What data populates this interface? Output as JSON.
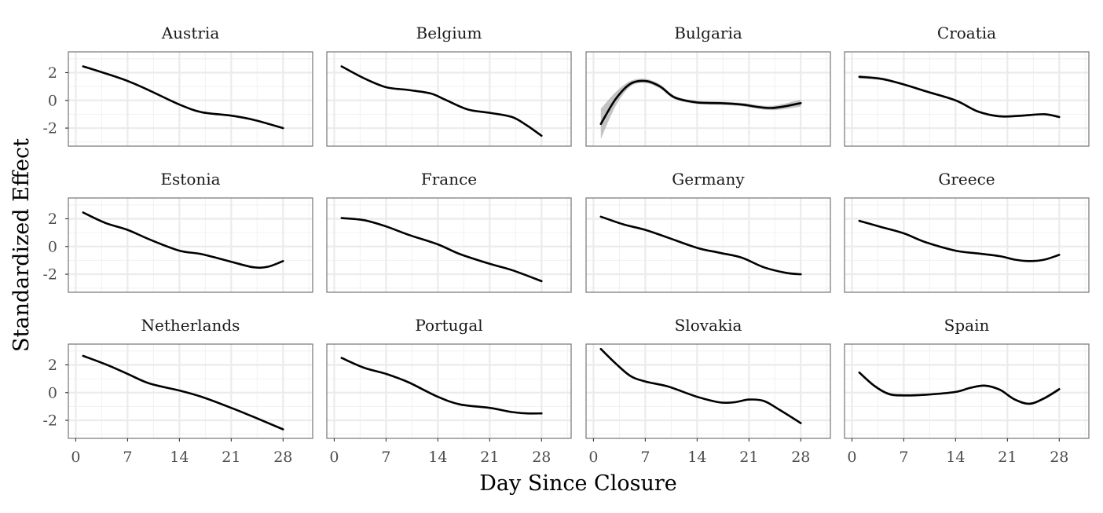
{
  "chart_data": {
    "type": "line",
    "xlabel": "Day Since Closure",
    "ylabel": "Standardized Effect",
    "xlim": [
      -1,
      32
    ],
    "ylim": [
      -3.3,
      3.5
    ],
    "x_ticks": [
      0,
      7,
      14,
      21,
      28
    ],
    "y_ticks": [
      -2,
      0,
      2
    ],
    "grid": true,
    "panels": [
      {
        "title": "Austria",
        "x": [
          1,
          4,
          7,
          10,
          14,
          17,
          21,
          24,
          28
        ],
        "y": [
          2.45,
          1.95,
          1.4,
          0.7,
          -0.3,
          -0.85,
          -1.1,
          -1.4,
          -2.0
        ]
      },
      {
        "title": "Belgium",
        "x": [
          1,
          4,
          7,
          10,
          13,
          15,
          18,
          21,
          24,
          26,
          28
        ],
        "y": [
          2.45,
          1.6,
          0.95,
          0.75,
          0.5,
          0.05,
          -0.65,
          -0.9,
          -1.2,
          -1.8,
          -2.55
        ]
      },
      {
        "title": "Bulgaria",
        "x": [
          1,
          3,
          5,
          7,
          9,
          11,
          14,
          17,
          20,
          24,
          28
        ],
        "y": [
          -1.7,
          0.1,
          1.2,
          1.4,
          1.0,
          0.2,
          -0.15,
          -0.2,
          -0.3,
          -0.55,
          -0.2
        ],
        "band": [
          1.1,
          0.5,
          0.2,
          0.15,
          0.15,
          0.12,
          0.12,
          0.12,
          0.12,
          0.15,
          0.25
        ]
      },
      {
        "title": "Croatia",
        "x": [
          1,
          4,
          7,
          10,
          14,
          17,
          20,
          23,
          26,
          28
        ],
        "y": [
          1.7,
          1.55,
          1.15,
          0.65,
          0.0,
          -0.8,
          -1.15,
          -1.1,
          -1.0,
          -1.2
        ],
        "band": [
          0.12,
          0.1,
          0.08,
          0.08,
          0.08,
          0.08,
          0.08,
          0.08,
          0.08,
          0.1
        ]
      },
      {
        "title": "Estonia",
        "x": [
          1,
          4,
          7,
          10,
          14,
          17,
          21,
          24,
          26,
          28
        ],
        "y": [
          2.45,
          1.7,
          1.2,
          0.5,
          -0.3,
          -0.55,
          -1.1,
          -1.5,
          -1.45,
          -1.05
        ]
      },
      {
        "title": "France",
        "x": [
          1,
          4,
          7,
          10,
          14,
          17,
          21,
          24,
          28
        ],
        "y": [
          2.05,
          1.9,
          1.45,
          0.85,
          0.15,
          -0.55,
          -1.25,
          -1.7,
          -2.5
        ]
      },
      {
        "title": "Germany",
        "x": [
          1,
          4,
          7,
          10,
          14,
          17,
          20,
          23,
          26,
          28
        ],
        "y": [
          2.15,
          1.6,
          1.2,
          0.65,
          -0.1,
          -0.45,
          -0.8,
          -1.5,
          -1.9,
          -2.0
        ]
      },
      {
        "title": "Greece",
        "x": [
          1,
          4,
          7,
          10,
          14,
          17,
          20,
          22,
          24,
          26,
          28
        ],
        "y": [
          1.85,
          1.4,
          0.95,
          0.3,
          -0.3,
          -0.5,
          -0.7,
          -0.95,
          -1.05,
          -0.95,
          -0.6
        ]
      },
      {
        "title": "Netherlands",
        "x": [
          1,
          4,
          7,
          10,
          14,
          17,
          21,
          24,
          28
        ],
        "y": [
          2.65,
          2.05,
          1.35,
          0.65,
          0.15,
          -0.3,
          -1.1,
          -1.75,
          -2.65
        ]
      },
      {
        "title": "Portugal",
        "x": [
          1,
          4,
          7,
          10,
          14,
          17,
          21,
          24,
          26,
          28
        ],
        "y": [
          2.5,
          1.8,
          1.35,
          0.75,
          -0.3,
          -0.85,
          -1.1,
          -1.4,
          -1.5,
          -1.5
        ]
      },
      {
        "title": "Slovakia",
        "x": [
          1,
          3,
          5,
          7,
          10,
          14,
          17,
          19,
          21,
          23,
          25,
          28
        ],
        "y": [
          3.15,
          2.1,
          1.2,
          0.8,
          0.45,
          -0.3,
          -0.7,
          -0.7,
          -0.5,
          -0.6,
          -1.2,
          -2.2
        ]
      },
      {
        "title": "Spain",
        "x": [
          1,
          3,
          5,
          7,
          10,
          14,
          16,
          18,
          20,
          22,
          24,
          26,
          28
        ],
        "y": [
          1.45,
          0.5,
          -0.1,
          -0.2,
          -0.15,
          0.05,
          0.35,
          0.5,
          0.2,
          -0.5,
          -0.8,
          -0.4,
          0.25
        ],
        "band": [
          0.12,
          0.1,
          0.1,
          0.1,
          0.08,
          0.08,
          0.08,
          0.08,
          0.08,
          0.08,
          0.08,
          0.1,
          0.12
        ]
      }
    ]
  }
}
